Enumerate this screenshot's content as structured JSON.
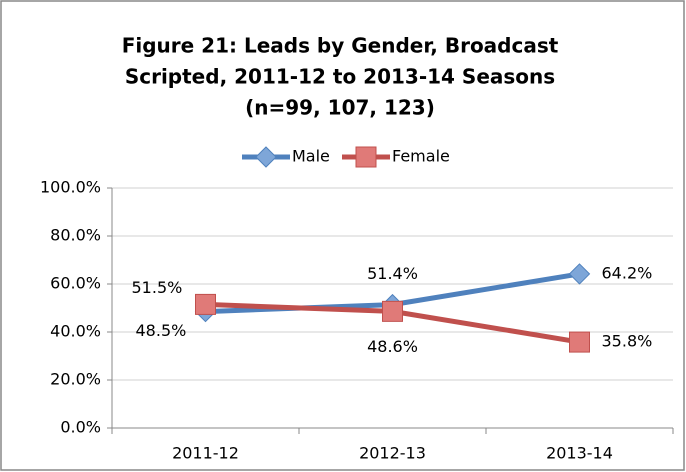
{
  "chart_data": {
    "type": "line",
    "title": [
      "Figure 21:  Leads by Gender, Broadcast",
      "Scripted, 2011-12 to 2013-14 Seasons",
      "(n=99, 107, 123)"
    ],
    "categories": [
      "2011-12",
      "2012-13",
      "2013-14"
    ],
    "series": [
      {
        "name": "Male",
        "color": "#4f81bd",
        "marker": "diamond",
        "values": [
          48.5,
          51.4,
          64.2
        ],
        "value_labels": [
          "48.5%",
          "51.4%",
          "64.2%"
        ]
      },
      {
        "name": "Female",
        "color": "#c0504d",
        "marker": "square",
        "values": [
          51.5,
          48.6,
          35.8
        ],
        "value_labels": [
          "51.5%",
          "48.6%",
          "35.8%"
        ]
      }
    ],
    "ylim": [
      0,
      100
    ],
    "yticks": [
      {
        "value": 0,
        "label": "0.0%"
      },
      {
        "value": 20,
        "label": "20.0%"
      },
      {
        "value": 40,
        "label": "40.0%"
      },
      {
        "value": 60,
        "label": "60.0%"
      },
      {
        "value": 80,
        "label": "80.0%"
      },
      {
        "value": 100,
        "label": "100.0%"
      }
    ],
    "grid": true,
    "legend": "top"
  }
}
